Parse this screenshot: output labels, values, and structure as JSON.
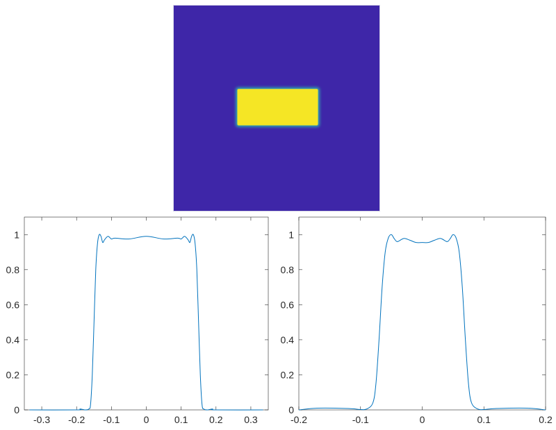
{
  "chart_data": [
    {
      "type": "heatmap",
      "colormap": "parula",
      "colors": {
        "low": "#3e26a8",
        "high": "#f5e625"
      },
      "size": [
        25,
        25
      ],
      "background_value": 0,
      "block_value": 1,
      "block_columns": [
        7,
        17
      ],
      "block_rows": [
        10,
        14
      ],
      "axes_visible": false
    },
    {
      "type": "line",
      "xlim": [
        -0.35,
        0.35
      ],
      "ylim": [
        0,
        1.1
      ],
      "xticks": [
        "-0.3",
        "-0.2",
        "-0.1",
        "0",
        "0.1",
        "0.2",
        "0.3"
      ],
      "xtick_values": [
        -0.3,
        -0.2,
        -0.1,
        0,
        0.1,
        0.2,
        0.3
      ],
      "yticks": [
        "0",
        "0.2",
        "0.4",
        "0.6",
        "0.8",
        "1"
      ],
      "ytick_values": [
        0,
        0.2,
        0.4,
        0.6,
        0.8,
        1
      ],
      "grid": false,
      "color": "#0072bd",
      "x": [
        -0.335,
        -0.2,
        -0.19,
        -0.175,
        -0.165,
        -0.16,
        -0.155,
        -0.15,
        -0.145,
        -0.14,
        -0.135,
        -0.13,
        -0.125,
        -0.12,
        -0.11,
        -0.1,
        -0.09,
        -0.05,
        0,
        0.05,
        0.09,
        0.1,
        0.11,
        0.12,
        0.125,
        0.13,
        0.135,
        0.14,
        0.145,
        0.15,
        0.155,
        0.16,
        0.165,
        0.175,
        0.19,
        0.2,
        0.335
      ],
      "y": [
        0,
        0,
        0.005,
        0,
        0.005,
        0.03,
        0.2,
        0.5,
        0.8,
        0.95,
        1.0,
        0.99,
        0.955,
        0.97,
        0.99,
        0.975,
        0.98,
        0.975,
        0.99,
        0.975,
        0.98,
        0.975,
        0.99,
        0.97,
        0.955,
        0.99,
        1.0,
        0.95,
        0.8,
        0.5,
        0.2,
        0.03,
        0.005,
        0,
        0.005,
        0,
        0
      ]
    },
    {
      "type": "line",
      "xlim": [
        -0.2,
        0.2
      ],
      "ylim": [
        0,
        1.1
      ],
      "xticks": [
        "-0.2",
        "-0.1",
        "0",
        "0.1",
        "0.2"
      ],
      "xtick_values": [
        -0.2,
        -0.1,
        0,
        0.1,
        0.2
      ],
      "yticks": [
        "0",
        "0.2",
        "0.4",
        "0.6",
        "0.8",
        "1"
      ],
      "ytick_values": [
        0,
        0.2,
        0.4,
        0.6,
        0.8,
        1
      ],
      "grid": false,
      "color": "#0072bd",
      "x": [
        -0.2,
        -0.17,
        -0.12,
        -0.1,
        -0.09,
        -0.08,
        -0.075,
        -0.07,
        -0.065,
        -0.06,
        -0.055,
        -0.05,
        -0.045,
        -0.04,
        -0.03,
        -0.02,
        -0.01,
        0,
        0.01,
        0.02,
        0.03,
        0.04,
        0.045,
        0.05,
        0.055,
        0.06,
        0.065,
        0.07,
        0.075,
        0.08,
        0.09,
        0.1,
        0.12,
        0.17,
        0.2
      ],
      "y": [
        0,
        0.01,
        0.008,
        0.002,
        0.005,
        0.04,
        0.15,
        0.4,
        0.7,
        0.9,
        0.98,
        1.0,
        0.975,
        0.96,
        0.978,
        0.968,
        0.955,
        0.955,
        0.955,
        0.968,
        0.978,
        0.96,
        0.975,
        1.0,
        0.98,
        0.9,
        0.7,
        0.4,
        0.15,
        0.04,
        0.005,
        0.002,
        0.008,
        0.01,
        0
      ]
    }
  ]
}
